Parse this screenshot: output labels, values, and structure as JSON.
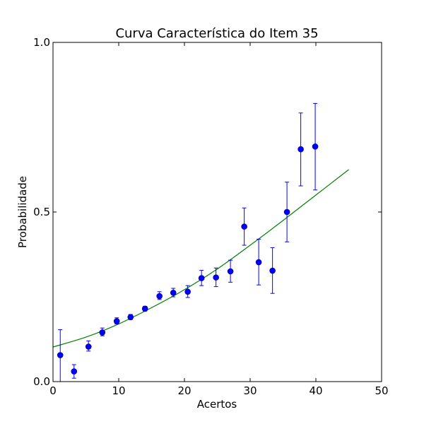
{
  "chart_data": {
    "type": "scatter",
    "title": "Curva Característica do Item 35",
    "xlabel": "Acertos",
    "ylabel": "Probabilidade",
    "xlim": [
      0,
      50
    ],
    "ylim": [
      0.0,
      1.0
    ],
    "x_ticks": [
      {
        "value": 0,
        "label": "0"
      },
      {
        "value": 10,
        "label": "10"
      },
      {
        "value": 20,
        "label": "20"
      },
      {
        "value": 30,
        "label": "30"
      },
      {
        "value": 40,
        "label": "40"
      },
      {
        "value": 50,
        "label": "50"
      }
    ],
    "y_ticks": [
      {
        "value": 0.0,
        "label": "0.0"
      },
      {
        "value": 0.5,
        "label": "0.5"
      },
      {
        "value": 1.0,
        "label": "1.0"
      }
    ],
    "grid": false,
    "legend": false,
    "points": [
      {
        "x": 1.1,
        "y": 0.078,
        "lo": 0.0,
        "hi": 0.153
      },
      {
        "x": 3.2,
        "y": 0.03,
        "lo": 0.01,
        "hi": 0.05
      },
      {
        "x": 5.4,
        "y": 0.103,
        "lo": 0.09,
        "hi": 0.12
      },
      {
        "x": 7.5,
        "y": 0.145,
        "lo": 0.135,
        "hi": 0.158
      },
      {
        "x": 9.7,
        "y": 0.178,
        "lo": 0.17,
        "hi": 0.188
      },
      {
        "x": 11.8,
        "y": 0.19,
        "lo": 0.183,
        "hi": 0.198
      },
      {
        "x": 14.0,
        "y": 0.215,
        "lo": 0.208,
        "hi": 0.222
      },
      {
        "x": 16.2,
        "y": 0.252,
        "lo": 0.242,
        "hi": 0.265
      },
      {
        "x": 18.3,
        "y": 0.262,
        "lo": 0.25,
        "hi": 0.275
      },
      {
        "x": 20.5,
        "y": 0.265,
        "lo": 0.248,
        "hi": 0.283
      },
      {
        "x": 22.6,
        "y": 0.305,
        "lo": 0.283,
        "hi": 0.328
      },
      {
        "x": 24.8,
        "y": 0.307,
        "lo": 0.28,
        "hi": 0.335
      },
      {
        "x": 27.0,
        "y": 0.325,
        "lo": 0.293,
        "hi": 0.358
      },
      {
        "x": 29.1,
        "y": 0.457,
        "lo": 0.402,
        "hi": 0.512
      },
      {
        "x": 31.3,
        "y": 0.352,
        "lo": 0.285,
        "hi": 0.42
      },
      {
        "x": 33.4,
        "y": 0.327,
        "lo": 0.26,
        "hi": 0.395
      },
      {
        "x": 35.6,
        "y": 0.5,
        "lo": 0.412,
        "hi": 0.588
      },
      {
        "x": 37.7,
        "y": 0.685,
        "lo": 0.577,
        "hi": 0.792
      },
      {
        "x": 39.9,
        "y": 0.693,
        "lo": 0.565,
        "hi": 0.82
      }
    ],
    "curve": {
      "x": [
        0,
        5,
        10,
        15,
        20,
        25,
        30,
        35,
        40,
        45
      ],
      "y": [
        0.102,
        0.131,
        0.17,
        0.218,
        0.271,
        0.332,
        0.402,
        0.475,
        0.55,
        0.625
      ]
    },
    "colors": {
      "points": "#0000ff",
      "errorbars": "#0000ff",
      "curve": "#008000",
      "frame": "#000000"
    }
  }
}
